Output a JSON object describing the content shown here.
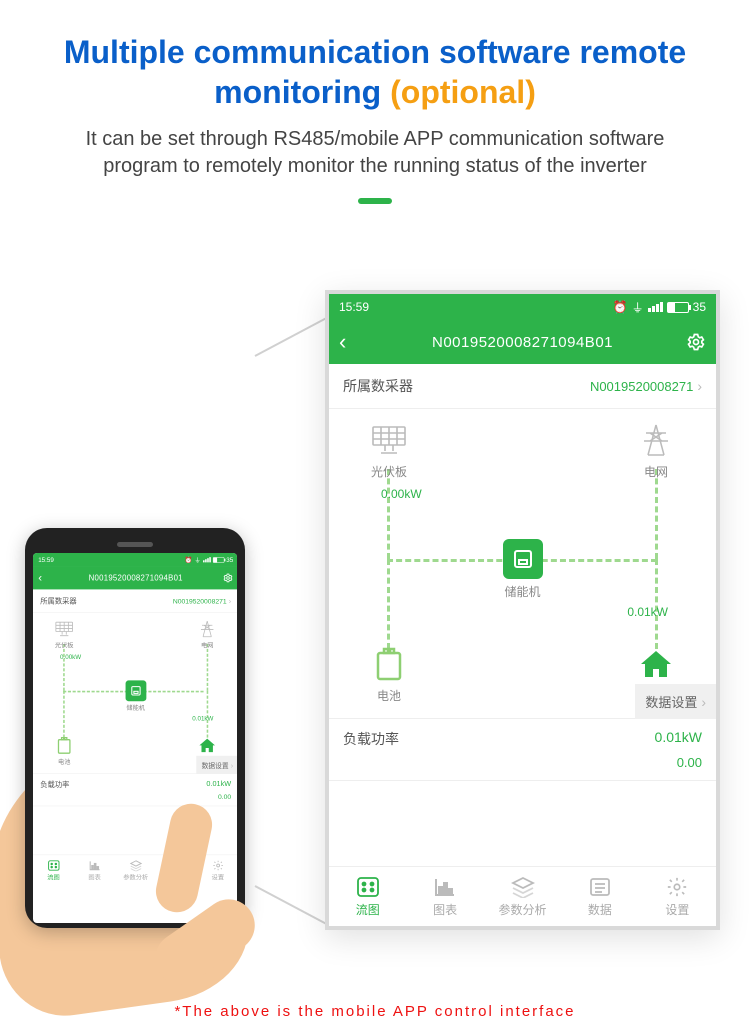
{
  "headline_main": "Multiple communication software remote monitoring ",
  "headline_opt": "(optional)",
  "headline_color_main": "#0a5fc9",
  "headline_color_opt": "#f59f13",
  "subtext": "It can be set through RS485/mobile APP communication software program to remotely monitor the running status of the inverter",
  "accent_color": "#2db34a",
  "status": {
    "time": "15:59",
    "battery": "35"
  },
  "title": "N0019520008271094B01",
  "collector": {
    "label": "所属数采器",
    "value": "N0019520008271"
  },
  "nodes": {
    "pv": "光伏板",
    "grid": "电网",
    "inverter": "储能机",
    "battery": "电池",
    "load": "负载"
  },
  "power": {
    "pv": "0.00kW",
    "load": "0.01kW"
  },
  "data_settings": "数据设置",
  "metric": {
    "label": "负载功率",
    "v1": "0.01kW",
    "v2": "0.00"
  },
  "tabs": [
    "流图",
    "图表",
    "参数分析",
    "数据",
    "设置"
  ],
  "footnote": "*The above is the mobile APP control interface"
}
